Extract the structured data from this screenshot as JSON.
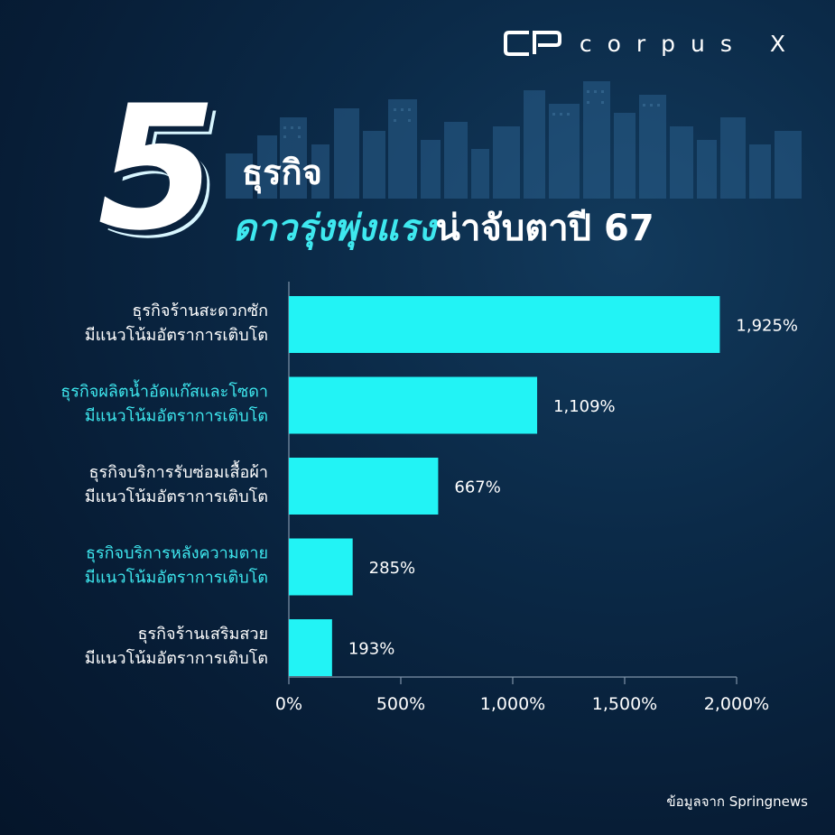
{
  "brand": {
    "name": "corpus X",
    "logo_icon": "cp-logo-icon"
  },
  "headline": {
    "number": "5",
    "line1": "ธุรกิจ",
    "line2_highlight": "ดาวรุ่งพุ่งแรง",
    "line2_rest": "น่าจับตาปี 67"
  },
  "colors": {
    "bar": "#22f3f5",
    "accent_text": "#3ee8ef",
    "background": "#0b2a48",
    "text": "#ffffff"
  },
  "chart_data": {
    "type": "bar",
    "orientation": "horizontal",
    "categories": [
      [
        "ธุรกิจร้านสะดวกซัก",
        "มีแนวโน้มอัตราการเติบโต"
      ],
      [
        "ธุรกิจผลิตน้ำอัดแก๊สและโซดา",
        "มีแนวโน้มอัตราการเติบโต"
      ],
      [
        "ธุรกิจบริการรับซ่อมเสื้อผ้า",
        "มีแนวโน้มอัตราการเติบโต"
      ],
      [
        "ธุรกิจบริการหลังความตาย",
        "มีแนวโน้มอัตราการเติบโต"
      ],
      [
        "ธุรกิจร้านเสริมสวย",
        "มีแนวโน้มอัตราการเติบโต"
      ]
    ],
    "category_highlight": [
      false,
      true,
      false,
      true,
      false
    ],
    "values": [
      1925,
      1109,
      667,
      285,
      193
    ],
    "value_labels": [
      "1,925%",
      "1,109%",
      "667%",
      "285%",
      "193%"
    ],
    "xlim": [
      0,
      2000
    ],
    "xticks": [
      0,
      500,
      1000,
      1500,
      2000
    ],
    "xtick_labels": [
      "0%",
      "500%",
      "1,000%",
      "1,500%",
      "2,000%"
    ],
    "grid": false
  },
  "source": "ข้อมูลจาก Springnews"
}
